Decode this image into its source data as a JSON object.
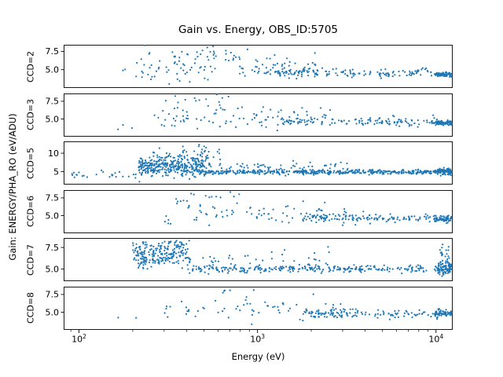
{
  "figure": {
    "title": "Gain vs. Energy, OBS_ID:5705",
    "xlabel": "Energy (eV)",
    "ylabel": "Gain: ENERGY/PHA_RO (eV/ADU)"
  },
  "chart_data": {
    "type": "scatter",
    "title": "Gain vs. Energy, OBS_ID:5705",
    "xlabel": "Energy (eV)",
    "ylabel": "Gain: ENERGY/PHA_RO (eV/ADU)",
    "x_scale": "log",
    "xlim": [
      82,
      12400
    ],
    "marker_color": "#1f77b4",
    "legend": "none",
    "grid": false,
    "x_ticks": [
      {
        "value": 100,
        "base": "10",
        "exp": "2"
      },
      {
        "value": 1000,
        "base": "10",
        "exp": "3"
      },
      {
        "value": 10000,
        "base": "10",
        "exp": "4"
      }
    ],
    "panels": [
      {
        "label": "CCD=2",
        "ylim": [
          2.5,
          8.4
        ],
        "yticks": [
          {
            "value": 5.0,
            "label": "5.0"
          },
          {
            "value": 7.5,
            "label": "7.5"
          }
        ],
        "clusters": [
          {
            "n": 110,
            "x": [
              200,
              2200
            ],
            "y_mean": 5.4,
            "y_sd": 1.0
          },
          {
            "n": 20,
            "x": [
              320,
              900
            ],
            "y_mean": 7.3,
            "y_sd": 0.45
          },
          {
            "n": 160,
            "x": [
              1000,
              9500
            ],
            "y_mean": 4.55,
            "y_sd": 0.3
          },
          {
            "n": 90,
            "x": [
              9800,
              12300
            ],
            "y_mean": 4.35,
            "y_sd": 0.15
          },
          {
            "n": 5,
            "x": [
              150,
              260
            ],
            "y_mean": 4.6,
            "y_sd": 0.5
          },
          {
            "n": 3,
            "x": [
              170,
              260
            ],
            "y_mean": 7.6,
            "y_sd": 0.4
          }
        ]
      },
      {
        "label": "CCD=3",
        "ylim": [
          2.5,
          8.6
        ],
        "yticks": [
          {
            "value": 5.0,
            "label": "5.0"
          },
          {
            "value": 7.5,
            "label": "7.5"
          }
        ],
        "clusters": [
          {
            "n": 90,
            "x": [
              260,
              2600
            ],
            "y_mean": 5.3,
            "y_sd": 0.9
          },
          {
            "n": 12,
            "x": [
              300,
              700
            ],
            "y_mean": 7.7,
            "y_sd": 0.4
          },
          {
            "n": 130,
            "x": [
              1400,
              9800
            ],
            "y_mean": 4.6,
            "y_sd": 0.3
          },
          {
            "n": 85,
            "x": [
              9800,
              12300
            ],
            "y_mean": 4.45,
            "y_sd": 0.18
          },
          {
            "n": 3,
            "x": [
              165,
              210
            ],
            "y_mean": 4.2,
            "y_sd": 0.3
          }
        ]
      },
      {
        "label": "CCD=5",
        "ylim": [
          1.5,
          13.2
        ],
        "yticks": [
          {
            "value": 5,
            "label": "5"
          },
          {
            "value": 10,
            "label": "10"
          }
        ],
        "clusters": [
          {
            "n": 25,
            "x": [
              90,
              210
            ],
            "y_mean": 4.2,
            "y_sd": 0.5
          },
          {
            "n": 330,
            "x": [
              215,
              520
            ],
            "y_mean": 6.2,
            "y_sd": 1.2
          },
          {
            "n": 70,
            "x": [
              240,
              620
            ],
            "y_mean": 9.3,
            "y_sd": 1.4
          },
          {
            "n": 420,
            "x": [
              500,
              10500
            ],
            "y_mean": 4.9,
            "y_sd": 0.3
          },
          {
            "n": 70,
            "x": [
              520,
              3200
            ],
            "y_mean": 6.1,
            "y_sd": 0.9
          },
          {
            "n": 110,
            "x": [
              10200,
              12400
            ],
            "y_mean": 5.0,
            "y_sd": 0.45
          }
        ]
      },
      {
        "label": "CCD=6",
        "ylim": [
          2.5,
          8.6
        ],
        "yticks": [
          {
            "value": 5.0,
            "label": "5.0"
          },
          {
            "value": 7.5,
            "label": "7.5"
          }
        ],
        "clusters": [
          {
            "n": 85,
            "x": [
              300,
              3200
            ],
            "y_mean": 5.5,
            "y_sd": 0.95
          },
          {
            "n": 10,
            "x": [
              400,
              900
            ],
            "y_mean": 7.7,
            "y_sd": 0.35
          },
          {
            "n": 130,
            "x": [
              1800,
              10200
            ],
            "y_mean": 4.6,
            "y_sd": 0.28
          },
          {
            "n": 65,
            "x": [
              9800,
              12300
            ],
            "y_mean": 4.5,
            "y_sd": 0.2
          }
        ]
      },
      {
        "label": "CCD=7",
        "ylim": [
          3.6,
          8.6
        ],
        "yticks": [
          {
            "value": 5.0,
            "label": "5.0"
          },
          {
            "value": 7.5,
            "label": "7.5"
          }
        ],
        "clusters": [
          {
            "n": 210,
            "x": [
              200,
              420
            ],
            "y_mean": 6.6,
            "y_sd": 0.75
          },
          {
            "n": 25,
            "x": [
              195,
              420
            ],
            "y_mean": 7.9,
            "y_sd": 0.3
          },
          {
            "n": 260,
            "x": [
              430,
              10300
            ],
            "y_mean": 5.0,
            "y_sd": 0.22
          },
          {
            "n": 45,
            "x": [
              450,
              2600
            ],
            "y_mean": 6.0,
            "y_sd": 0.6
          },
          {
            "n": 95,
            "x": [
              10200,
              12400
            ],
            "y_mean": 5.05,
            "y_sd": 0.35
          },
          {
            "n": 22,
            "x": [
              10400,
              12400
            ],
            "y_mean": 6.6,
            "y_sd": 0.8
          }
        ]
      },
      {
        "label": "CCD=8",
        "ylim": [
          2.5,
          8.6
        ],
        "yticks": [
          {
            "value": 5.0,
            "label": "5.0"
          },
          {
            "value": 7.5,
            "label": "7.5"
          }
        ],
        "clusters": [
          {
            "n": 75,
            "x": [
              300,
              3200
            ],
            "y_mean": 5.3,
            "y_sd": 0.85
          },
          {
            "n": 5,
            "x": [
              600,
              1000
            ],
            "y_mean": 7.8,
            "y_sd": 0.3
          },
          {
            "n": 110,
            "x": [
              1800,
              10300
            ],
            "y_mean": 4.7,
            "y_sd": 0.3
          },
          {
            "n": 65,
            "x": [
              9800,
              12300
            ],
            "y_mean": 4.75,
            "y_sd": 0.25
          },
          {
            "n": 2,
            "x": [
              160,
              210
            ],
            "y_mean": 4.4,
            "y_sd": 0.3
          }
        ]
      }
    ]
  }
}
